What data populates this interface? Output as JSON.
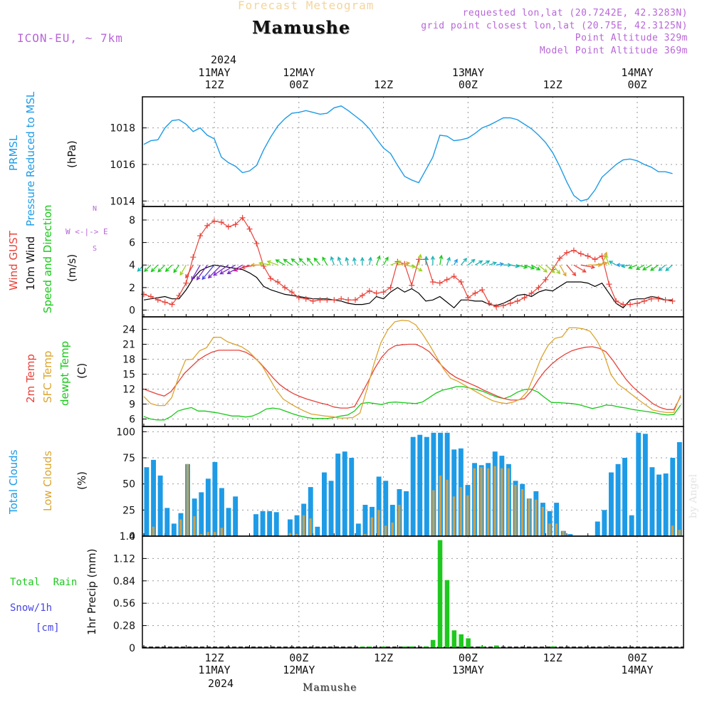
{
  "header": {
    "subtitle": "Forecast Meteogram",
    "title": "Mamushe",
    "model": "ICON-EU, ~ 7km",
    "info": [
      "requested lon,lat (20.7242E, 42.3283N)",
      "grid point closest lon,lat (20.75E, 42.3125N)",
      "Point Altitude 329m",
      "Model Point Altitude 369m"
    ],
    "year_top": "2024",
    "year_bottom": "2024",
    "bottom_name": "Mamushe",
    "watermark": "by Angel"
  },
  "time_axis": {
    "start": "2024-05-11 02Z",
    "step_hours": 1,
    "count": 70,
    "top_ticks": [
      {
        "hour": 10,
        "lines": [
          "11MAY",
          "12Z"
        ]
      },
      {
        "hour": 22,
        "lines": [
          "12MAY",
          "00Z"
        ]
      },
      {
        "hour": 34,
        "lines": [
          "",
          "12Z"
        ]
      },
      {
        "hour": 46,
        "lines": [
          "13MAY",
          "00Z"
        ]
      },
      {
        "hour": 58,
        "lines": [
          "",
          "12Z"
        ]
      },
      {
        "hour": 70,
        "lines": [
          "14MAY",
          "00Z"
        ]
      }
    ],
    "bottom_ticks": [
      {
        "hour": 10,
        "lines": [
          "12Z",
          "11MAY"
        ]
      },
      {
        "hour": 22,
        "lines": [
          "00Z",
          "12MAY"
        ]
      },
      {
        "hour": 34,
        "lines": [
          "12Z",
          ""
        ]
      },
      {
        "hour": 46,
        "lines": [
          "00Z",
          "13MAY"
        ]
      },
      {
        "hour": 58,
        "lines": [
          "12Z",
          ""
        ]
      },
      {
        "hour": 70,
        "lines": [
          "00Z",
          "14MAY"
        ]
      }
    ]
  },
  "labels": {
    "pressure": [
      "PRMSL",
      "Pressure Reduced to MSL",
      "(hPa)"
    ],
    "wind": [
      "Wind GUST",
      "10m Wind",
      "Speed and Direction",
      "(m/s)"
    ],
    "compass": [
      "N",
      "W <-|-> E",
      "S"
    ],
    "temp": [
      "2m Temp",
      "SFC Temp",
      "dewpt Temp",
      "(C)"
    ],
    "clouds": [
      "Total Clouds",
      "Low Clouds",
      "(%)"
    ],
    "precip": [
      "Total Rain",
      "Snow/1h",
      "[cm]",
      "1hr Precip (mm)"
    ]
  },
  "colors": {
    "pressure": "#1e9be6",
    "gust": "#e8423a",
    "wind": "#000000",
    "t2m": "#e8423a",
    "sfc": "#dba531",
    "dewpt": "#19c819",
    "total_cloud": "#1e9be6",
    "low_cloud": "#c8a050",
    "rain": "#1ec81e",
    "snow": "#4646e6",
    "label_purple": "#b866d8"
  },
  "chart_data": [
    {
      "type": "line",
      "name": "PRMSL",
      "ylim": [
        1013.7,
        1019.7
      ],
      "yticks": [
        1014,
        1016,
        1018
      ],
      "values": [
        1017.1,
        1017.3,
        1017.35,
        1018.0,
        1018.4,
        1018.45,
        1018.2,
        1017.8,
        1018.0,
        1017.6,
        1017.4,
        1016.4,
        1016.1,
        1015.9,
        1015.55,
        1015.65,
        1015.95,
        1016.8,
        1017.5,
        1018.1,
        1018.5,
        1018.8,
        1018.85,
        1018.95,
        1018.85,
        1018.75,
        1018.8,
        1019.1,
        1019.2,
        1018.95,
        1018.65,
        1018.35,
        1017.95,
        1017.4,
        1016.9,
        1016.6,
        1015.95,
        1015.35,
        1015.15,
        1015.0,
        1015.7,
        1016.4,
        1017.6,
        1017.55,
        1017.3,
        1017.35,
        1017.45,
        1017.7,
        1018.0,
        1018.15,
        1018.35,
        1018.55,
        1018.55,
        1018.45,
        1018.2,
        1017.95,
        1017.6,
        1017.2,
        1016.65,
        1015.9,
        1015.05,
        1014.3,
        1014.0,
        1014.1,
        1014.6,
        1015.3,
        1015.65,
        1016.0,
        1016.25,
        1016.3,
        1016.2,
        1016.0,
        1015.85,
        1015.6,
        1015.6,
        1015.5
      ]
    },
    {
      "type": "line",
      "name": "Wind",
      "ylim": [
        -0.6,
        9.2
      ],
      "yticks": [
        0,
        2,
        4,
        6,
        8
      ],
      "gust": [
        1.4,
        1.2,
        0.9,
        0.7,
        0.5,
        1.3,
        2.4,
        4.7,
        6.6,
        7.5,
        7.9,
        7.8,
        7.4,
        7.6,
        8.2,
        7.2,
        5.9,
        3.9,
        2.8,
        2.5,
        2.0,
        1.6,
        1.1,
        1.0,
        0.8,
        0.9,
        0.9,
        0.9,
        1.0,
        0.9,
        0.9,
        1.3,
        1.7,
        1.5,
        1.6,
        2.0,
        4.3,
        4.1,
        2.2,
        4.5,
        4.5,
        2.5,
        2.4,
        2.7,
        3.0,
        2.5,
        1.1,
        1.5,
        1.8,
        0.6,
        0.3,
        0.4,
        0.6,
        0.8,
        1.1,
        1.5,
        2.0,
        2.7,
        3.6,
        4.6,
        5.1,
        5.3,
        5.0,
        4.8,
        4.5,
        4.8,
        2.3,
        0.8,
        0.5,
        0.5,
        0.6,
        0.8,
        1.0,
        1.0,
        0.9,
        0.8
      ],
      "wind": [
        0.9,
        1.0,
        1.1,
        1.2,
        1.0,
        1.0,
        1.8,
        2.8,
        3.5,
        3.8,
        4.0,
        3.9,
        3.8,
        3.7,
        3.6,
        3.3,
        2.9,
        2.1,
        1.8,
        1.6,
        1.4,
        1.3,
        1.2,
        1.1,
        1.0,
        1.0,
        1.0,
        0.9,
        0.8,
        0.6,
        0.5,
        0.5,
        0.6,
        1.2,
        1.0,
        1.6,
        2.0,
        1.6,
        1.9,
        1.5,
        0.8,
        0.9,
        1.2,
        0.7,
        0.2,
        0.9,
        0.9,
        0.8,
        0.8,
        0.5,
        0.4,
        0.6,
        0.9,
        1.3,
        1.4,
        1.2,
        1.6,
        1.8,
        1.7,
        2.1,
        2.5,
        2.5,
        2.5,
        2.4,
        2.1,
        2.4,
        1.5,
        0.6,
        0.2,
        0.9,
        1.0,
        1.0,
        1.2,
        1.1,
        0.9,
        0.9
      ],
      "wind_dir_from_deg": [
        45,
        45,
        45,
        45,
        45,
        35,
        30,
        30,
        30,
        35,
        40,
        45,
        55,
        60,
        60,
        70,
        80,
        90,
        100,
        110,
        120,
        125,
        130,
        135,
        140,
        140,
        150,
        160,
        160,
        165,
        170,
        180,
        190,
        200,
        210,
        250,
        260,
        280,
        300,
        190,
        185,
        180,
        190,
        200,
        210,
        220,
        230,
        240,
        240,
        250,
        260,
        270,
        280,
        285,
        290,
        300,
        310,
        310,
        320,
        330,
        320,
        300,
        280,
        270,
        260,
        200,
        160,
        120,
        90,
        80,
        70,
        60,
        60,
        55,
        50,
        50
      ]
    },
    {
      "type": "line",
      "name": "Temperature",
      "ylim": [
        4.5,
        26.5
      ],
      "yticks": [
        6,
        9,
        12,
        15,
        18,
        21,
        24
      ],
      "series": [
        {
          "name": "2m Temp",
          "values": [
            12,
            11.5,
            11,
            10.6,
            11.5,
            13.3,
            15.2,
            16.5,
            17.8,
            18.7,
            19.4,
            19.8,
            19.8,
            19.8,
            19.8,
            19.4,
            18.6,
            17.4,
            15.9,
            14.3,
            12.9,
            11.9,
            11.1,
            10.5,
            10.0,
            9.6,
            9.2,
            8.9,
            8.4,
            8.2,
            8.2,
            8.5,
            10.9,
            13.5,
            16.2,
            18.4,
            19.9,
            20.7,
            20.9,
            21.0,
            21.0,
            20.4,
            19.5,
            18.0,
            16.5,
            15.2,
            14.3,
            13.7,
            13.1,
            12.5,
            11.8,
            11.2,
            10.6,
            10.1,
            9.8,
            9.8,
            10.1,
            11.6,
            13.8,
            15.6,
            17.0,
            18.1,
            19.0,
            19.7,
            20.1,
            20.4,
            20.5,
            20.2,
            19.5,
            17.8,
            15.8,
            13.9,
            12.4,
            11.2,
            10.1,
            9.0,
            8.3,
            7.9,
            7.9,
            10.5
          ]
        },
        {
          "name": "SFC Temp",
          "values": [
            10.5,
            9.1,
            8.7,
            8.7,
            10.3,
            14.5,
            17.9,
            18.0,
            19.7,
            20.3,
            22.4,
            22.4,
            21.5,
            21.0,
            20.5,
            19.6,
            18.2,
            16.6,
            14.2,
            11.8,
            10.0,
            9.1,
            8.3,
            7.6,
            7.0,
            6.8,
            6.6,
            6.5,
            6.2,
            6.2,
            6.3,
            7.2,
            12.0,
            17.0,
            21.3,
            23.9,
            25.5,
            25.8,
            25.7,
            24.9,
            23.0,
            20.8,
            18.4,
            16.0,
            14.2,
            13.6,
            12.8,
            12.0,
            11.2,
            10.4,
            9.7,
            9.3,
            9.1,
            9.4,
            10.0,
            11.5,
            14.8,
            18.3,
            20.8,
            22.2,
            22.5,
            24.3,
            24.3,
            24.1,
            23.6,
            21.7,
            19.0,
            14.9,
            13.0,
            12.0,
            10.9,
            9.8,
            8.8,
            7.8,
            7.5,
            7.3,
            7.3,
            10.8
          ]
        },
        {
          "name": "dewpt Temp",
          "values": [
            6.5,
            6.0,
            5.8,
            5.8,
            6.5,
            7.6,
            8.0,
            8.3,
            7.6,
            7.6,
            7.4,
            7.2,
            6.9,
            6.6,
            6.6,
            6.4,
            6.6,
            7.2,
            8.0,
            8.2,
            8.0,
            7.5,
            7.0,
            6.6,
            6.3,
            6.1,
            6.1,
            6.1,
            6.3,
            6.6,
            6.8,
            7.6,
            9.1,
            9.3,
            9.1,
            8.9,
            9.3,
            9.4,
            9.3,
            9.2,
            9.1,
            9.4,
            10.3,
            11.2,
            11.8,
            12.1,
            12.5,
            12.5,
            12.2,
            11.9,
            11.5,
            10.9,
            10.4,
            10.1,
            10.6,
            11.4,
            11.9,
            12.0,
            11.4,
            10.3,
            9.3,
            9.3,
            9.2,
            9.1,
            8.9,
            8.5,
            8.1,
            8.4,
            8.8,
            8.7,
            8.4,
            8.2,
            7.9,
            7.7,
            7.5,
            7.3,
            7.0,
            6.8,
            6.9,
            8.8
          ]
        }
      ]
    },
    {
      "type": "bar",
      "name": "Clouds",
      "ylim": [
        0,
        105
      ],
      "yticks": [
        0,
        25,
        50,
        75,
        100
      ],
      "series": [
        {
          "name": "Total Clouds",
          "values": [
            66,
            73,
            58,
            27,
            12,
            22,
            69,
            36,
            42,
            55,
            71,
            46,
            27,
            38,
            0,
            0,
            21,
            24,
            24,
            23,
            0,
            16,
            20,
            31,
            47,
            9,
            61,
            53,
            79,
            81,
            75,
            12,
            30,
            28,
            57,
            53,
            30,
            45,
            43,
            95,
            97,
            95,
            99,
            99,
            99,
            83,
            84,
            49,
            70,
            68,
            70,
            81,
            77,
            69,
            53,
            50,
            36,
            43,
            32,
            24,
            32,
            5,
            2,
            0,
            0,
            0,
            14,
            25,
            61,
            69,
            75,
            20,
            99,
            98,
            66,
            59,
            60,
            75,
            90
          ]
        },
        {
          "name": "Low Clouds",
          "values": [
            0,
            9,
            0,
            0,
            0,
            16,
            69,
            19,
            2,
            4,
            4,
            8,
            0,
            0,
            0,
            0,
            0,
            0,
            0,
            0,
            0,
            3,
            2,
            20,
            17,
            0,
            0,
            0,
            0,
            0,
            0,
            0,
            2,
            18,
            25,
            10,
            13,
            30,
            0,
            0,
            0,
            0,
            44,
            58,
            54,
            38,
            47,
            39,
            65,
            66,
            65,
            67,
            65,
            65,
            49,
            45,
            36,
            35,
            28,
            12,
            12,
            5,
            0,
            0,
            0,
            0,
            0,
            0,
            0,
            0,
            0,
            0,
            0,
            0,
            0,
            0,
            0,
            10,
            6
          ]
        }
      ]
    },
    {
      "type": "bar",
      "name": "Precip",
      "ylim": [
        0,
        1.4
      ],
      "yticks": [
        0,
        0.28,
        0.56,
        0.84,
        1.12,
        1.4
      ],
      "categories_hour_index": [
        31,
        32,
        34,
        37,
        38,
        40,
        41,
        42,
        43,
        44,
        45,
        46,
        48,
        50,
        58
      ],
      "rain": [
        0.005,
        0.008,
        0.01,
        0.015,
        0.02,
        0.02,
        0.1,
        1.35,
        0.85,
        0.22,
        0.17,
        0.12,
        0.02,
        0.03,
        0.02
      ]
    }
  ]
}
